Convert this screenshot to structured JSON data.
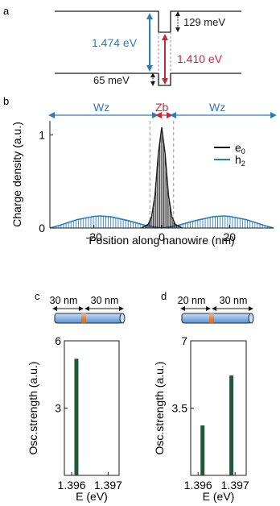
{
  "colors": {
    "black": "#1a1a1a",
    "blue": "#2a7bbf",
    "red": "#c8283a",
    "green": "#1f5a36",
    "nanowire_blue": "#8fb7e6",
    "nanowire_orange": "#e8863a",
    "dashed_gray": "#9a9a9a"
  },
  "panel_a": {
    "label": "a",
    "gap_total": "1.474 eV",
    "gap_transition": "1.410 eV",
    "cb_offset": "129 meV",
    "vb_offset": "65 meV"
  },
  "panel_b": {
    "label": "b",
    "region_left": "Wz",
    "region_center": "Zb",
    "region_right": "Wz"
  },
  "panel_c": {
    "label": "c",
    "seg_left": "30 nm",
    "seg_right": "30 nm"
  },
  "panel_d": {
    "label": "d",
    "seg_left": "20 nm",
    "seg_right": "30 nm"
  },
  "chart_data": [
    {
      "panel": "b",
      "type": "line",
      "xlabel": "Position along nanowire (nm)",
      "ylabel": "Charge density (a.u.)",
      "xlim": [
        -33,
        33
      ],
      "ylim": [
        0,
        1.15
      ],
      "xticks": [
        -20,
        0,
        20
      ],
      "yticks": [
        0,
        1
      ],
      "xticklabels": [
        "-20",
        "0",
        "20"
      ],
      "yticklabels": [
        "0",
        "1"
      ],
      "legend_position": "right",
      "series": [
        {
          "name": "e0",
          "legend_main": "e",
          "legend_sub": "0",
          "color": "#1a1a1a",
          "description": "sharply peaked at x = 0, peak value about 1.08",
          "x": [
            -6,
            -4,
            -3,
            -2,
            -1,
            0,
            1,
            2,
            3,
            4,
            6
          ],
          "values": [
            0.0,
            0.04,
            0.12,
            0.35,
            0.8,
            1.08,
            0.8,
            0.35,
            0.12,
            0.04,
            0.0
          ]
        },
        {
          "name": "h2",
          "legend_main": "h",
          "legend_sub": "2",
          "color": "#2a7bbf",
          "description": "two broad lobes centered near x = -18 and x = 18",
          "x": [
            -33,
            -30,
            -25,
            -20,
            -18,
            -15,
            -10,
            -5,
            -2,
            0,
            2,
            5,
            10,
            15,
            18,
            20,
            25,
            30,
            33
          ],
          "values": [
            0.0,
            0.03,
            0.09,
            0.125,
            0.13,
            0.12,
            0.08,
            0.03,
            0.01,
            0.0,
            0.01,
            0.03,
            0.08,
            0.12,
            0.13,
            0.125,
            0.09,
            0.03,
            0.0
          ]
        }
      ]
    },
    {
      "panel": "c",
      "type": "bar",
      "xlabel": "E (eV)",
      "ylabel": "Osc.strength (a.u.)",
      "xlim": [
        1.3958,
        1.3973
      ],
      "ylim": [
        0,
        6
      ],
      "xticks": [
        1.396,
        1.397
      ],
      "yticks": [
        3,
        6
      ],
      "xticklabels": [
        "1.396",
        "1.397"
      ],
      "yticklabels": [
        "3",
        "6"
      ],
      "x": [
        1.39613
      ],
      "values": [
        5.2
      ],
      "color": "#1f5a36"
    },
    {
      "panel": "d",
      "type": "bar",
      "xlabel": "E (eV)",
      "ylabel": "Osc.strength (a.u.)",
      "xlim": [
        1.3958,
        1.3973
      ],
      "ylim": [
        0,
        7
      ],
      "xticks": [
        1.396,
        1.397
      ],
      "yticks": [
        3.5,
        7
      ],
      "xticklabels": [
        "1.396",
        "1.397"
      ],
      "yticklabels": [
        "3.5",
        "7"
      ],
      "x": [
        1.39612,
        1.3969
      ],
      "values": [
        2.6,
        5.2
      ],
      "color": "#1f5a36"
    }
  ]
}
